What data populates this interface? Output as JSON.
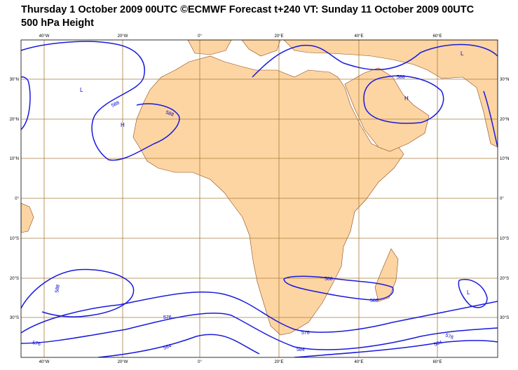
{
  "header": {
    "title": "Thursday 1 October 2009 00UTC ©ECMWF Forecast t+240 VT: Sunday 11 October 2009 00UTC",
    "subtitle": "500 hPa Height"
  },
  "map": {
    "lon_labels": [
      "40°W",
      "20°W",
      "0°",
      "20°E",
      "40°E",
      "60°E"
    ],
    "lat_labels": [
      "30°N",
      "20°N",
      "10°N",
      "0°",
      "10°S",
      "20°S",
      "30°S"
    ],
    "contour_labels": [
      "588",
      "588",
      "588",
      "588",
      "576",
      "576",
      "584",
      "588",
      "588",
      "576",
      "584",
      "576",
      "584"
    ],
    "centers": [
      "H",
      "H",
      "L",
      "L",
      "L"
    ]
  }
}
